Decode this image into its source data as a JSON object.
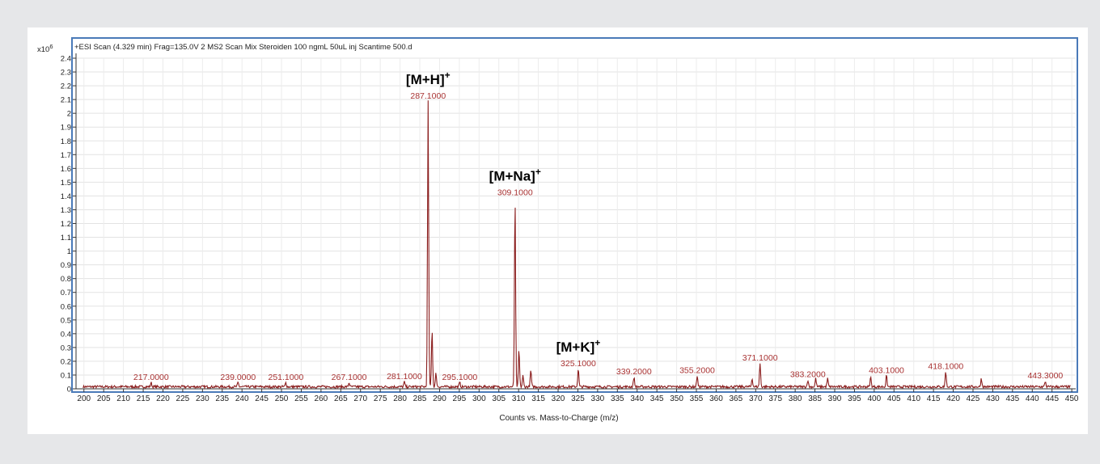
{
  "chart_data": {
    "type": "line",
    "title": "+ESI Scan (4.329 min) Frag=135.0V 2 MS2 Scan Mix Steroiden 100 ngmL 50uL inj Scantime 500.d",
    "xlabel": "Counts vs. Mass-to-Charge (m/z)",
    "ylabel": "",
    "y_multiplier": "x10",
    "y_exponent": "6",
    "xlim": [
      198,
      451
    ],
    "ylim": [
      0,
      2.4
    ],
    "x_ticks": [
      200,
      205,
      210,
      215,
      220,
      225,
      230,
      235,
      240,
      245,
      250,
      255,
      260,
      265,
      270,
      275,
      280,
      285,
      290,
      295,
      300,
      305,
      310,
      315,
      320,
      325,
      330,
      335,
      340,
      345,
      350,
      355,
      360,
      365,
      370,
      375,
      380,
      385,
      390,
      395,
      400,
      405,
      410,
      415,
      420,
      425,
      430,
      435,
      440,
      445,
      450
    ],
    "y_ticks": [
      "0",
      "0.1",
      "0.2",
      "0.3",
      "0.4",
      "0.5",
      "0.6",
      "0.7",
      "0.8",
      "0.9",
      "1",
      "1.1",
      "1.2",
      "1.3",
      "1.4",
      "1.5",
      "1.6",
      "1.7",
      "1.8",
      "1.9",
      "2",
      "2.1",
      "2.2",
      "2.3",
      "2.4"
    ],
    "grid": true,
    "line_color": "#8b1e1e",
    "series": [
      {
        "peaks": [
          {
            "mz": 217.0,
            "intensity": 0.03
          },
          {
            "mz": 239.0,
            "intensity": 0.03
          },
          {
            "mz": 251.1,
            "intensity": 0.03
          },
          {
            "mz": 267.1,
            "intensity": 0.03
          },
          {
            "mz": 281.1,
            "intensity": 0.035
          },
          {
            "mz": 287.1,
            "intensity": 2.07
          },
          {
            "mz": 288.1,
            "intensity": 0.42
          },
          {
            "mz": 289.1,
            "intensity": 0.1
          },
          {
            "mz": 295.1,
            "intensity": 0.03
          },
          {
            "mz": 309.1,
            "intensity": 1.37
          },
          {
            "mz": 310.1,
            "intensity": 0.27
          },
          {
            "mz": 311.1,
            "intensity": 0.08
          },
          {
            "mz": 313.1,
            "intensity": 0.12
          },
          {
            "mz": 325.1,
            "intensity": 0.13
          },
          {
            "mz": 339.2,
            "intensity": 0.07
          },
          {
            "mz": 355.2,
            "intensity": 0.08
          },
          {
            "mz": 369.1,
            "intensity": 0.06
          },
          {
            "mz": 371.1,
            "intensity": 0.17
          },
          {
            "mz": 383.2,
            "intensity": 0.05
          },
          {
            "mz": 385.2,
            "intensity": 0.06
          },
          {
            "mz": 388.2,
            "intensity": 0.06
          },
          {
            "mz": 399.1,
            "intensity": 0.07
          },
          {
            "mz": 403.1,
            "intensity": 0.08
          },
          {
            "mz": 418.1,
            "intensity": 0.11
          },
          {
            "mz": 427.1,
            "intensity": 0.06
          },
          {
            "mz": 443.3,
            "intensity": 0.04
          }
        ]
      }
    ],
    "peak_labels": [
      {
        "mz": 217.0,
        "intensity": 0.03,
        "text": "217.0000"
      },
      {
        "mz": 239.0,
        "intensity": 0.03,
        "text": "239.0000"
      },
      {
        "mz": 251.1,
        "intensity": 0.03,
        "text": "251.1000"
      },
      {
        "mz": 267.1,
        "intensity": 0.03,
        "text": "267.1000"
      },
      {
        "mz": 281.1,
        "intensity": 0.035,
        "text": "281.1000"
      },
      {
        "mz": 287.1,
        "intensity": 2.07,
        "text": "287.1000"
      },
      {
        "mz": 295.1,
        "intensity": 0.03,
        "text": "295.1000"
      },
      {
        "mz": 309.1,
        "intensity": 1.37,
        "text": "309.1000"
      },
      {
        "mz": 325.1,
        "intensity": 0.13,
        "text": "325.1000"
      },
      {
        "mz": 339.2,
        "intensity": 0.07,
        "text": "339.2000"
      },
      {
        "mz": 355.2,
        "intensity": 0.08,
        "text": "355.2000"
      },
      {
        "mz": 371.1,
        "intensity": 0.17,
        "text": "371.1000"
      },
      {
        "mz": 383.2,
        "intensity": 0.05,
        "text": "383.2000"
      },
      {
        "mz": 403.1,
        "intensity": 0.08,
        "text": "403.1000"
      },
      {
        "mz": 418.1,
        "intensity": 0.11,
        "text": "418.1000"
      },
      {
        "mz": 443.3,
        "intensity": 0.04,
        "text": "443.3000"
      }
    ],
    "ion_annotations": [
      {
        "text": "[M+H]",
        "superscript": "+",
        "mz": 287.1,
        "intensity": 2.07
      },
      {
        "text": "[M+Na]",
        "superscript": "+",
        "mz": 309.1,
        "intensity": 1.37
      },
      {
        "text": "[M+K]",
        "superscript": "+",
        "mz": 325.1,
        "intensity": 0.13
      }
    ]
  }
}
